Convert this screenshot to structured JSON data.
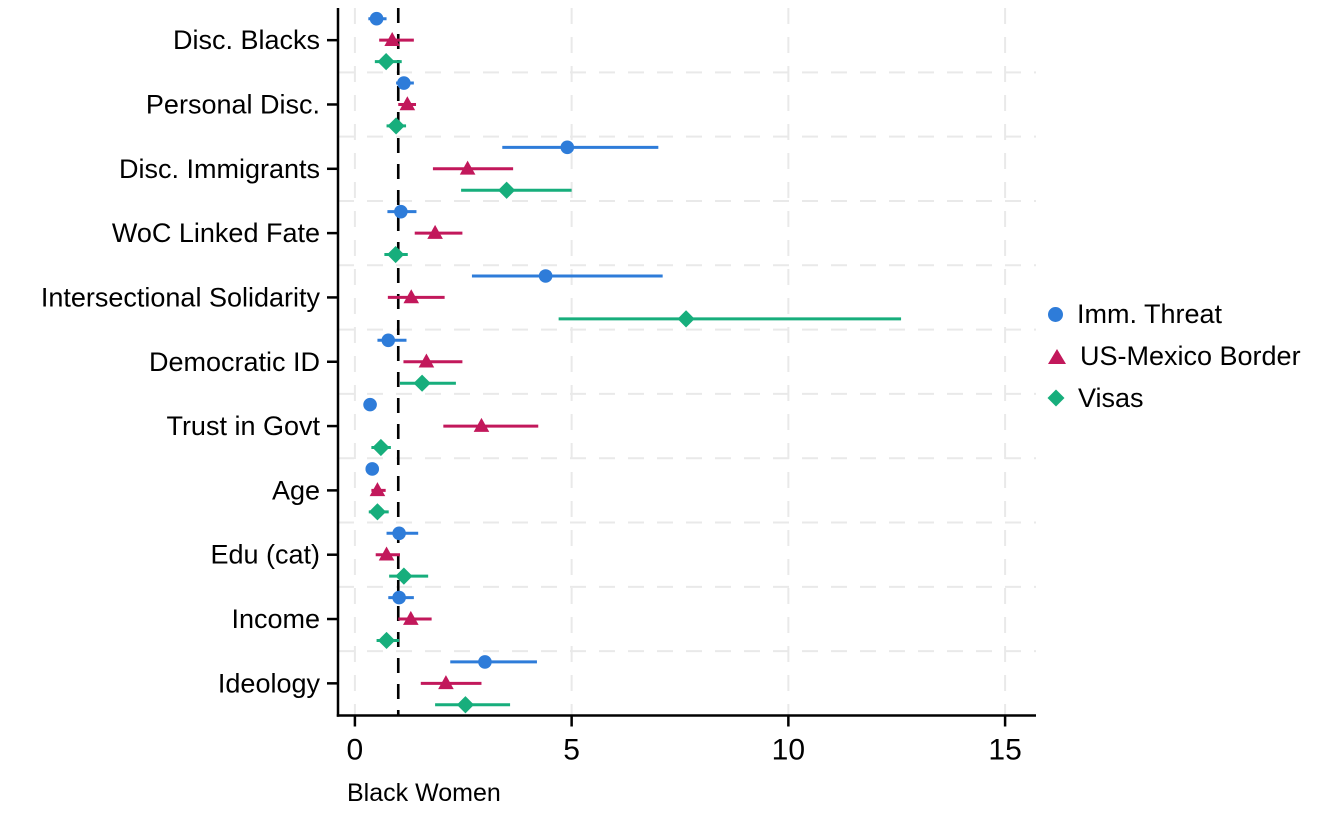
{
  "figure": {
    "background": "#ffffff",
    "xlabel": "Black Women"
  },
  "chart_data": {
    "type": "scatter",
    "subtype": "coefficient-dot-whisker-plot",
    "title": "",
    "xlabel": "Black Women",
    "ylabel": "",
    "xlim": [
      -0.39,
      15.69
    ],
    "x_ticks": [
      0,
      5,
      10,
      15
    ],
    "reference_line_x": 1,
    "grid": true,
    "legend_position": "right-outside",
    "categories": [
      "Disc. Blacks",
      "Personal Disc.",
      "Disc. Immigrants",
      "WoC Linked Fate",
      "Intersectional Solidarity",
      "Democratic ID",
      "Trust in Govt",
      "Age",
      "Edu (cat)",
      "Income",
      "Ideology"
    ],
    "series": [
      {
        "name": "Imm. Threat",
        "marker": "circle",
        "color": "#2E7CD9",
        "estimates": [
          0.5,
          1.13,
          4.9,
          1.06,
          4.4,
          0.77,
          0.35,
          0.4,
          1.02,
          1.02,
          3.0
        ],
        "ci_low": [
          0.31,
          0.95,
          3.4,
          0.75,
          2.7,
          0.52,
          0.26,
          0.31,
          0.73,
          0.77,
          2.2
        ],
        "ci_high": [
          0.73,
          1.36,
          7.0,
          1.42,
          7.1,
          1.19,
          0.46,
          0.51,
          1.46,
          1.36,
          4.2
        ]
      },
      {
        "name": "US-Mexico Border",
        "marker": "triangle",
        "color": "#C2185B",
        "estimates": [
          0.86,
          1.21,
          2.6,
          1.85,
          1.3,
          1.65,
          2.92,
          0.52,
          0.73,
          1.29,
          2.1
        ],
        "ci_low": [
          0.56,
          1.0,
          1.8,
          1.38,
          0.76,
          1.12,
          2.04,
          0.38,
          0.48,
          1.0,
          1.52
        ],
        "ci_high": [
          1.36,
          1.41,
          3.65,
          2.48,
          2.07,
          2.48,
          4.23,
          0.71,
          1.04,
          1.77,
          2.92
        ]
      },
      {
        "name": "Visas",
        "marker": "diamond",
        "color": "#17AE7C",
        "estimates": [
          0.72,
          0.95,
          3.5,
          0.94,
          7.64,
          1.55,
          0.6,
          0.52,
          1.13,
          0.73,
          2.55
        ],
        "ci_low": [
          0.46,
          0.73,
          2.45,
          0.68,
          4.7,
          1.04,
          0.38,
          0.32,
          0.79,
          0.5,
          1.85
        ],
        "ci_high": [
          1.08,
          1.18,
          5.0,
          1.22,
          12.6,
          2.33,
          0.83,
          0.78,
          1.69,
          1.02,
          3.58
        ]
      }
    ],
    "colors": {
      "axis": "#000000",
      "reference_line": "#000000",
      "gridline": "#e9e9e9",
      "tick_label": "#000000"
    }
  }
}
